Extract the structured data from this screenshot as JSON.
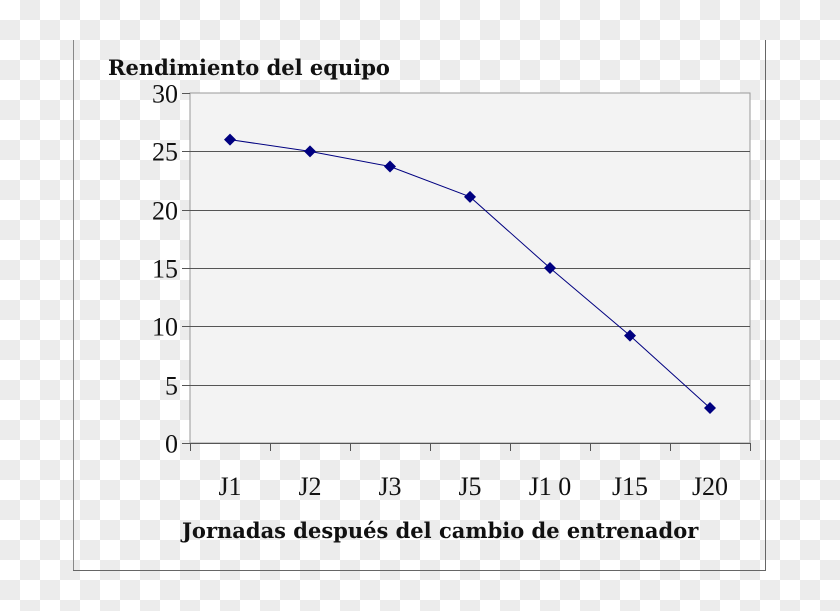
{
  "chart_data": {
    "type": "line",
    "title": "",
    "ylabel": "Rendimiento del equipo",
    "xlabel": "Jornadas después del cambio de entrenador",
    "categories": [
      "J1",
      "J2",
      "J3",
      "J5",
      "J1 0",
      "J15",
      "J20"
    ],
    "values": [
      26,
      25,
      23.7,
      21.1,
      15,
      9.2,
      3
    ],
    "ylim": [
      0,
      30
    ],
    "yticks": [
      0,
      5,
      10,
      15,
      20,
      25,
      30
    ],
    "grid": true,
    "legend": "none",
    "colors": {
      "series": "#000080",
      "plot_background": "#f3f3f3",
      "gridline": "#555555"
    },
    "marker": "diamond"
  }
}
